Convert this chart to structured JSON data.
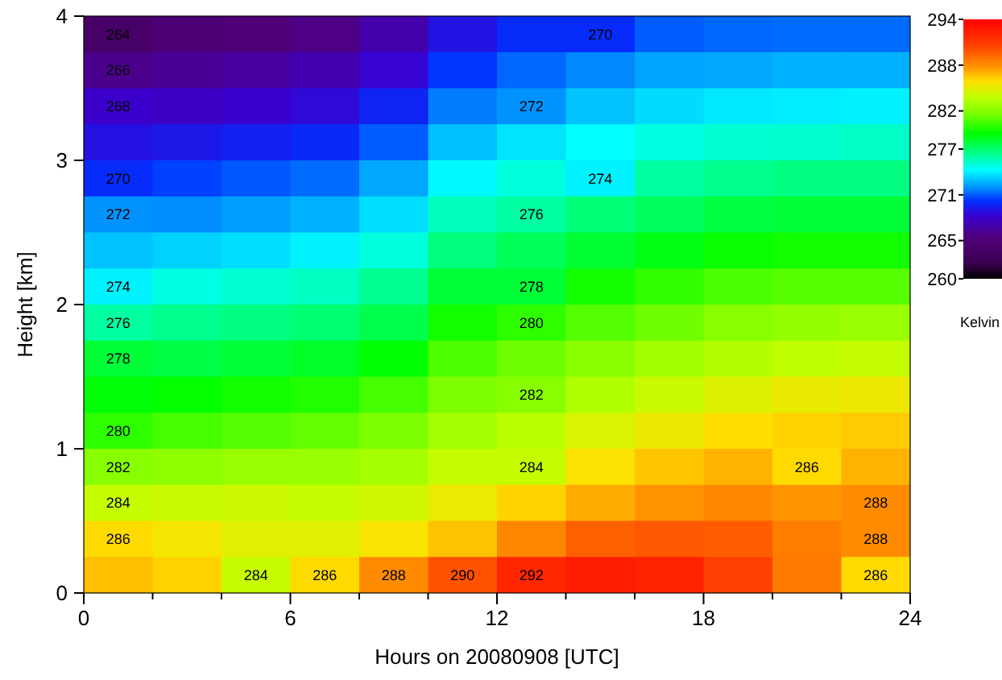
{
  "chart_data": {
    "type": "heatmap",
    "xlabel": "Hours on 20080908 [UTC]",
    "ylabel": "Height [km]",
    "clabel": "Kelvin",
    "x": [
      1,
      3,
      5,
      7,
      9,
      11,
      13,
      15,
      17,
      19,
      21,
      23
    ],
    "y": [
      3.875,
      3.625,
      3.375,
      3.125,
      2.875,
      2.625,
      2.375,
      2.125,
      1.875,
      1.625,
      1.375,
      1.125,
      0.875,
      0.625,
      0.375,
      0.125
    ],
    "xlim": [
      0,
      24
    ],
    "xticks": [
      0,
      {
        "value": 2,
        "label": null
      },
      {
        "value": 4,
        "label": null
      },
      6,
      {
        "value": 8,
        "label": null
      },
      {
        "value": 10,
        "label": null
      },
      12,
      {
        "value": 14,
        "label": null
      },
      {
        "value": 16,
        "label": null
      },
      18,
      {
        "value": 20,
        "label": null
      },
      {
        "value": 22,
        "label": null
      },
      24
    ],
    "ylim": [
      0,
      4
    ],
    "yticks": [
      0,
      1,
      2,
      3,
      4
    ],
    "clim": [
      260,
      294
    ],
    "cticks": [
      260,
      265,
      271,
      277,
      282,
      288,
      294
    ],
    "cells": [
      [
        264,
        265.0,
        265.3,
        265.8,
        267.0,
        269.0,
        270.0,
        270,
        271.0,
        271.2,
        271.3,
        271.3
      ],
      [
        266,
        266.3,
        266.6,
        267.1,
        268.3,
        270.3,
        271.2,
        271.8,
        272.3,
        272.4,
        272.6,
        272.6
      ],
      [
        268,
        267.8,
        268.1,
        268.5,
        269.7,
        271.6,
        272,
        273.0,
        273.5,
        273.8,
        273.9,
        274.0
      ],
      [
        268.9,
        269.2,
        269.5,
        269.9,
        271.0,
        272.9,
        273.7,
        274.3,
        274.8,
        275.1,
        275.2,
        275.3
      ],
      [
        270,
        270.5,
        270.9,
        271.3,
        272.4,
        274.2,
        274.9,
        274,
        276.0,
        276.4,
        276.6,
        276.6
      ],
      [
        272,
        271.9,
        272.2,
        272.6,
        273.6,
        275.5,
        276,
        276.8,
        277.3,
        277.8,
        278.0,
        278.0
      ],
      [
        273.0,
        273.3,
        273.6,
        274.0,
        274.9,
        276.7,
        277.4,
        278.1,
        278.7,
        279.2,
        279.4,
        279.4
      ],
      [
        274,
        274.8,
        275.1,
        275.4,
        276.3,
        278.0,
        278,
        279.4,
        280.1,
        280.6,
        280.9,
        280.9
      ],
      [
        276,
        276.4,
        276.6,
        276.9,
        277.6,
        279.4,
        280,
        280.8,
        281.4,
        282.0,
        282.4,
        282.6
      ],
      [
        278,
        277.7,
        278.0,
        278.3,
        279.0,
        280.7,
        281.4,
        282.1,
        282.8,
        283.4,
        283.8,
        283.9
      ],
      [
        278.9,
        279.1,
        279.4,
        279.7,
        280.5,
        281.7,
        282,
        283.3,
        284.1,
        284.7,
        285.1,
        285.3
      ],
      [
        280,
        280.5,
        280.8,
        281.1,
        281.7,
        282.9,
        283.6,
        284.6,
        285.3,
        285.9,
        286.2,
        286.4
      ],
      [
        282,
        282.2,
        282.5,
        282.6,
        282.9,
        284.0,
        284,
        285.7,
        286.5,
        287.0,
        286,
        287.0
      ],
      [
        284,
        284.1,
        284.2,
        284.0,
        284.3,
        285.2,
        286.2,
        287.2,
        287.8,
        288.2,
        287.8,
        288
      ],
      [
        286,
        285.5,
        284.8,
        284.8,
        285.6,
        286.6,
        288.2,
        289.5,
        289.8,
        289.6,
        288.5,
        288
      ],
      [
        286.7,
        286.2,
        284,
        286,
        288,
        290,
        292,
        292.4,
        292.2,
        290.6,
        288.6,
        286
      ]
    ],
    "cell_labels": [
      [
        "264",
        null,
        null,
        null,
        null,
        null,
        null,
        "270",
        null,
        null,
        null,
        null
      ],
      [
        "266",
        null,
        null,
        null,
        null,
        null,
        null,
        null,
        null,
        null,
        null,
        null
      ],
      [
        "268",
        null,
        null,
        null,
        null,
        null,
        "272",
        null,
        null,
        null,
        null,
        null
      ],
      [
        null,
        null,
        null,
        null,
        null,
        null,
        null,
        null,
        null,
        null,
        null,
        null
      ],
      [
        "270",
        null,
        null,
        null,
        null,
        null,
        null,
        "274",
        null,
        null,
        null,
        null
      ],
      [
        "272",
        null,
        null,
        null,
        null,
        null,
        "276",
        null,
        null,
        null,
        null,
        null
      ],
      [
        null,
        null,
        null,
        null,
        null,
        null,
        null,
        null,
        null,
        null,
        null,
        null
      ],
      [
        "274",
        null,
        null,
        null,
        null,
        null,
        "278",
        null,
        null,
        null,
        null,
        null
      ],
      [
        "276",
        null,
        null,
        null,
        null,
        null,
        "280",
        null,
        null,
        null,
        null,
        null
      ],
      [
        "278",
        null,
        null,
        null,
        null,
        null,
        null,
        null,
        null,
        null,
        null,
        null
      ],
      [
        null,
        null,
        null,
        null,
        null,
        null,
        "282",
        null,
        null,
        null,
        null,
        null
      ],
      [
        "280",
        null,
        null,
        null,
        null,
        null,
        null,
        null,
        null,
        null,
        null,
        null
      ],
      [
        "282",
        null,
        null,
        null,
        null,
        null,
        "284",
        null,
        null,
        null,
        "286",
        null
      ],
      [
        "284",
        null,
        null,
        null,
        null,
        null,
        null,
        null,
        null,
        null,
        null,
        "288"
      ],
      [
        "286",
        null,
        null,
        null,
        null,
        null,
        null,
        null,
        null,
        null,
        null,
        "288"
      ],
      [
        null,
        null,
        "284",
        "286",
        "288",
        "290",
        "292",
        null,
        null,
        null,
        null,
        "286"
      ]
    ]
  }
}
